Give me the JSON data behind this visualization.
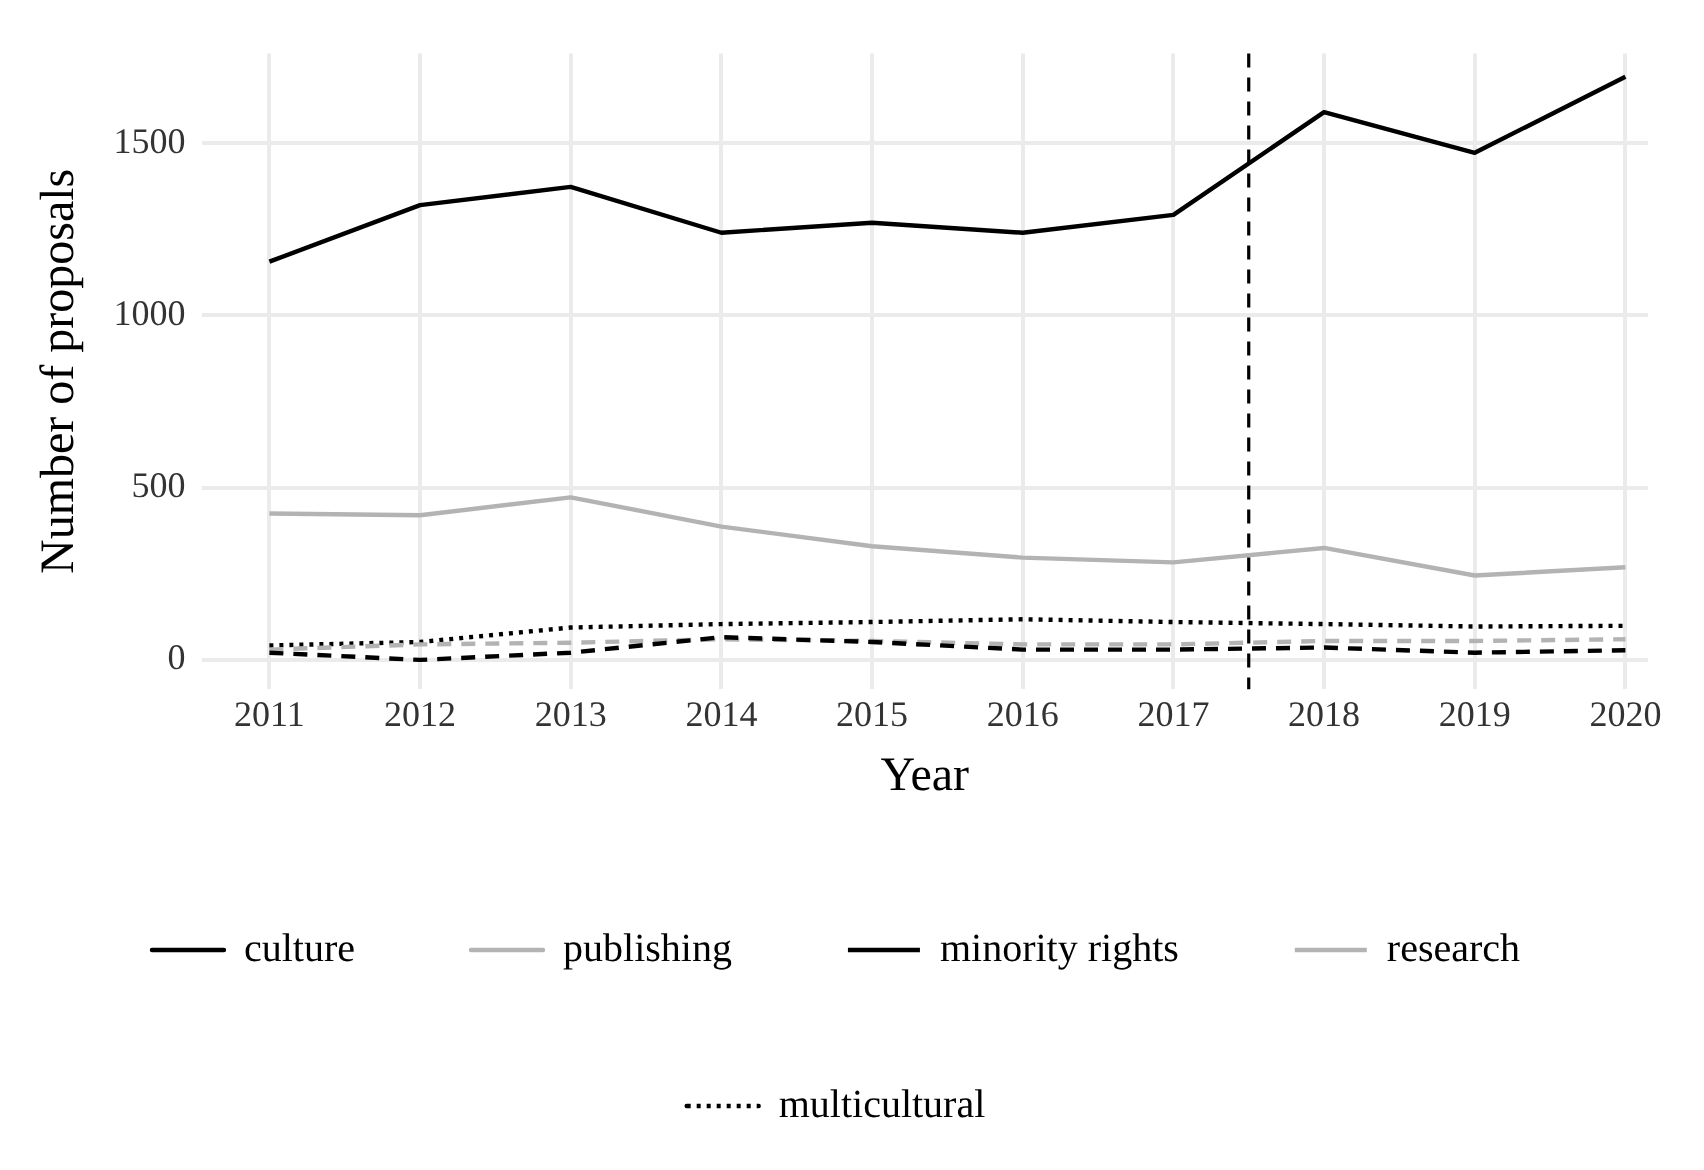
{
  "chart_data": {
    "type": "line",
    "xlabel": "Year",
    "ylabel": "Number of proposals",
    "x": [
      2011,
      2012,
      2013,
      2014,
      2015,
      2016,
      2017,
      2018,
      2019,
      2020
    ],
    "xlim": [
      2010.55,
      2020.15
    ],
    "xticks": [
      2011,
      2012,
      2013,
      2014,
      2015,
      2016,
      2017,
      2018,
      2019,
      2020
    ],
    "ylim": [
      -85,
      1760
    ],
    "yticks": [
      0,
      500,
      1000,
      1500
    ],
    "grid": true,
    "legend": "bottom",
    "marker": "none",
    "ref_lines": [
      {
        "axis": "x",
        "value": 2017.5,
        "color": "#000000",
        "line_style": "dashed"
      }
    ],
    "series": [
      {
        "name": "culture",
        "color": "#000000",
        "line_style": "solid",
        "values": [
          1156,
          1320,
          1373,
          1240,
          1269,
          1240,
          1292,
          1590,
          1472,
          1693
        ]
      },
      {
        "name": "publishing",
        "color": "#b3b3b3",
        "line_style": "solid",
        "values": [
          425,
          420,
          472,
          387,
          330,
          297,
          283,
          325,
          245,
          269
        ]
      },
      {
        "name": "minority rights",
        "color": "#000000",
        "line_style": "dashed",
        "values": [
          21,
          0,
          21,
          66,
          52,
          30,
          30,
          36,
          21,
          28
        ]
      },
      {
        "name": "research",
        "color": "#b3b3b3",
        "line_style": "dashed",
        "values": [
          30,
          45,
          50,
          60,
          55,
          45,
          45,
          55,
          55,
          60
        ]
      },
      {
        "name": "multicultural",
        "color": "#000000",
        "line_style": "dotted",
        "values": [
          42,
          52,
          94,
          104,
          110,
          118,
          110,
          104,
          97,
          99
        ]
      }
    ]
  }
}
